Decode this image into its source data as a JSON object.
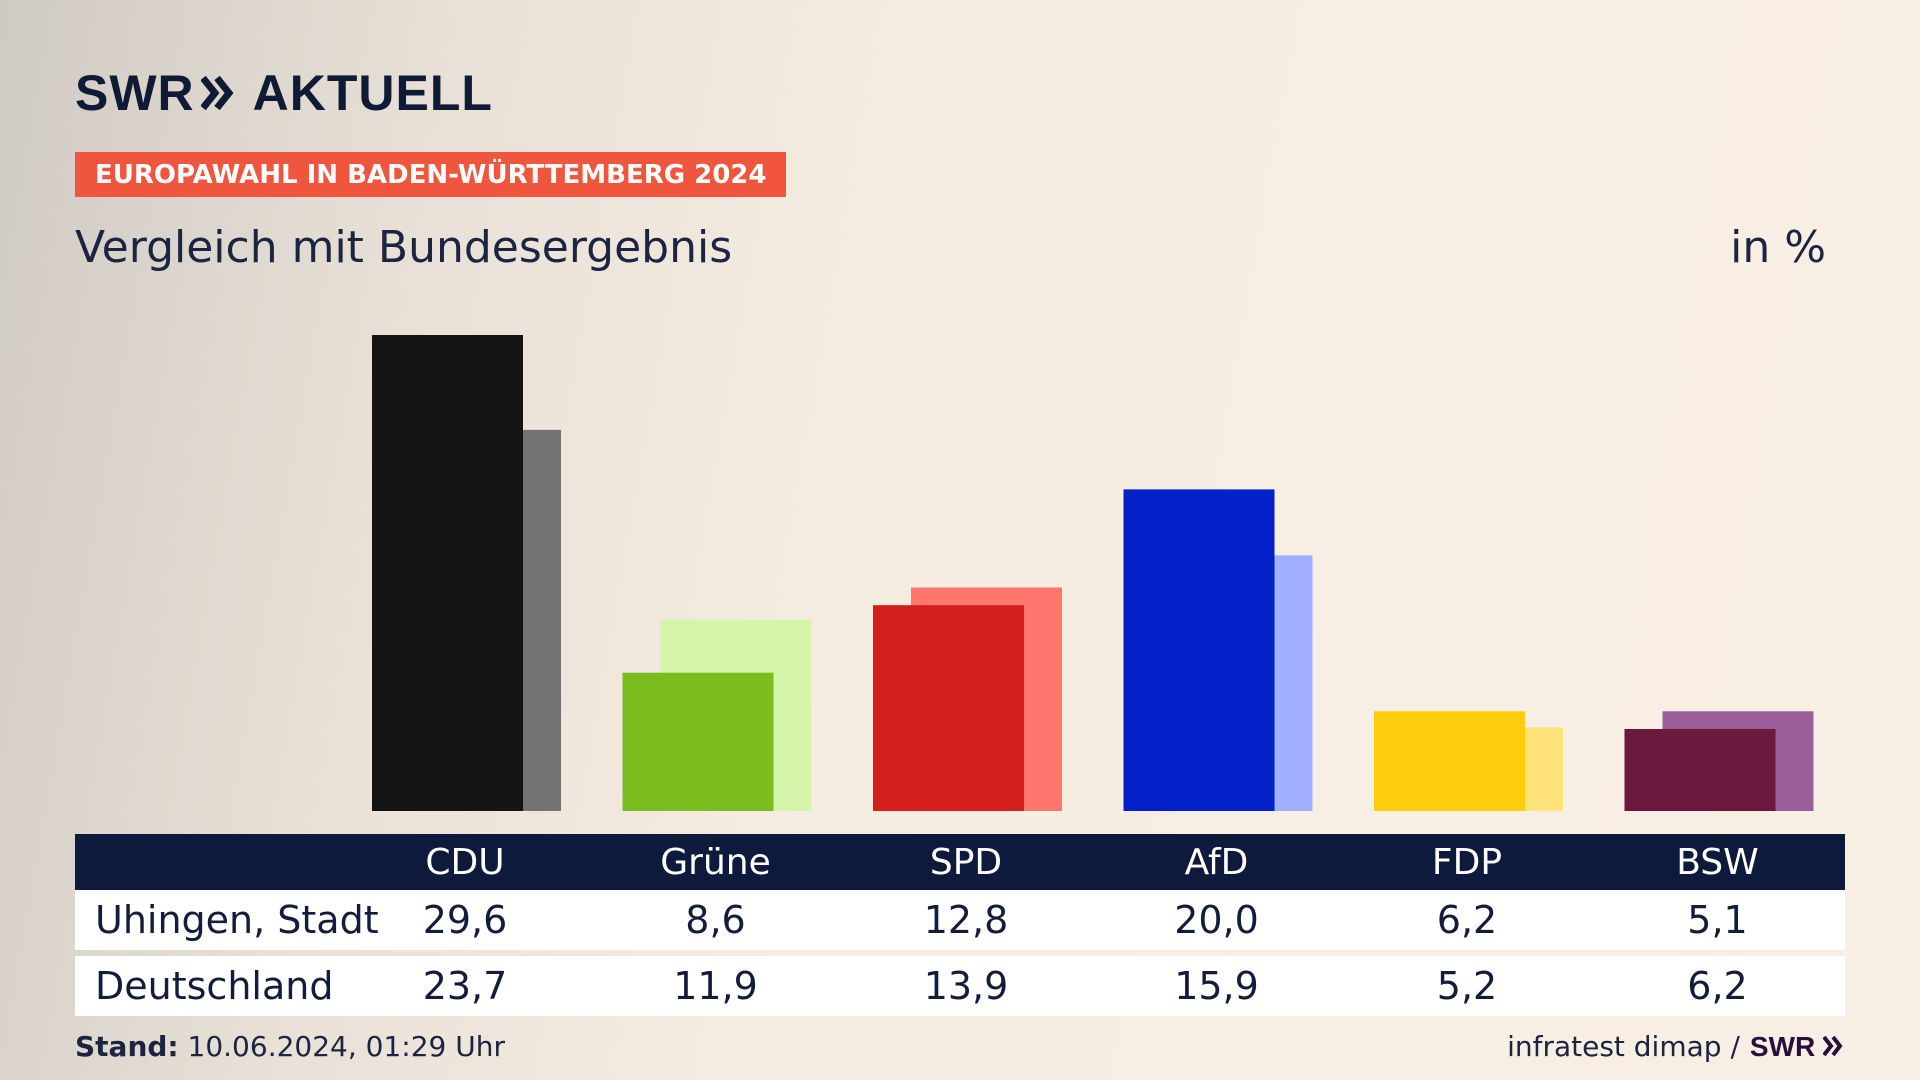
{
  "header": {
    "logo_text": "SWR",
    "logo_suffix": "AKTUELL",
    "banner": "EUROPAWAHL IN BADEN-WÜRTTEMBERG 2024",
    "subtitle": "Vergleich mit Bundesergebnis",
    "unit": "in %"
  },
  "chart_data": {
    "type": "bar",
    "categories": [
      "CDU",
      "Grüne",
      "SPD",
      "AfD",
      "FDP",
      "BSW"
    ],
    "series": [
      {
        "name": "Uhingen, Stadt",
        "values": [
          29.6,
          8.6,
          12.8,
          20.0,
          6.2,
          5.1
        ],
        "labels": [
          "29,6",
          "8,6",
          "12,8",
          "20,0",
          "6,2",
          "5,1"
        ],
        "colors": [
          "#141414",
          "#7bbd1e",
          "#d51e1e",
          "#0221c8",
          "#fdcd0b",
          "#6b1a3d"
        ]
      },
      {
        "name": "Deutschland",
        "values": [
          23.7,
          11.9,
          13.9,
          15.9,
          5.2,
          6.2
        ],
        "labels": [
          "23,7",
          "11,9",
          "13,9",
          "15,9",
          "5,2",
          "6,2"
        ],
        "colors": [
          "#737373",
          "#d5f5aa",
          "#ff766e",
          "#9faeff",
          "#ffe27a",
          "#9b5e9b"
        ]
      }
    ],
    "ylim": [
      0,
      30
    ],
    "grid": false,
    "legend": "table-below"
  },
  "footer": {
    "stand_label": "Stand:",
    "stand_value": "10.06.2024, 01:29 Uhr",
    "source": "infratest dimap /",
    "source_logo": "SWR"
  }
}
